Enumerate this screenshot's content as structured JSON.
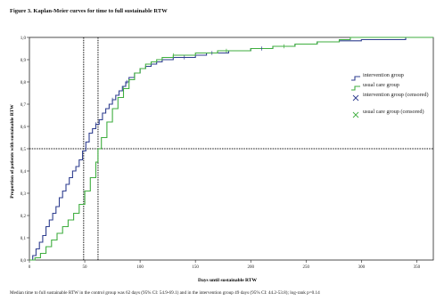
{
  "figure": {
    "title": "Figure 3. Kaplan-Meier curves for time to full sustainable RTW",
    "caption": "Median time to full sustainable RTW in the control group was 62 days (95% CI: 54.9-69.1) and in the intervention group 49 days (95% CI: 44.2-53.8); log-rank p=0.14"
  },
  "legend": [
    {
      "label": "intervention group",
      "kind": "line",
      "series": "intervention"
    },
    {
      "label": "usual care group",
      "kind": "line",
      "series": "usual"
    },
    {
      "label": "intervention group (censored)",
      "kind": "cross",
      "series": "intervention"
    },
    {
      "label": "usual care group (censored)",
      "kind": "cross",
      "series": "usual"
    }
  ],
  "chart_data": {
    "type": "line",
    "title": "",
    "xlabel": "Days until sustainable RTW",
    "ylabel": "Proportion of patients with sustainable RTW",
    "xlim": [
      0,
      365
    ],
    "ylim": [
      0,
      1
    ],
    "x_ticks": [
      0,
      50,
      100,
      150,
      200,
      250,
      300,
      350
    ],
    "y_ticks": [
      0.0,
      0.1,
      0.2,
      0.3,
      0.4,
      0.5,
      0.6,
      0.7,
      0.8,
      0.9,
      1.0
    ],
    "y_tick_labels": [
      "0,0",
      "0,1",
      "0,2",
      "0,3",
      "0,4",
      "0,5",
      "0,6",
      "0,7",
      "0,8",
      "0,9",
      "1,0"
    ],
    "grid": false,
    "legend_position": "right",
    "reference_lines": {
      "y": [
        0.5
      ],
      "x": [
        49,
        62
      ]
    },
    "series": [
      {
        "name": "intervention group",
        "color": "#2f3e8f",
        "x": [
          0,
          3,
          6,
          9,
          12,
          15,
          18,
          21,
          24,
          27,
          30,
          33,
          36,
          39,
          42,
          45,
          48,
          51,
          54,
          57,
          60,
          63,
          66,
          69,
          72,
          75,
          78,
          81,
          84,
          87,
          90,
          95,
          100,
          105,
          110,
          115,
          120,
          130,
          140,
          150,
          160,
          170,
          180,
          200,
          220,
          240,
          260,
          280,
          300,
          320,
          340,
          365
        ],
        "values": [
          0.0,
          0.02,
          0.05,
          0.08,
          0.11,
          0.15,
          0.18,
          0.21,
          0.24,
          0.28,
          0.31,
          0.34,
          0.37,
          0.4,
          0.42,
          0.45,
          0.49,
          0.53,
          0.57,
          0.59,
          0.61,
          0.63,
          0.66,
          0.68,
          0.7,
          0.72,
          0.74,
          0.76,
          0.78,
          0.8,
          0.82,
          0.84,
          0.86,
          0.87,
          0.88,
          0.89,
          0.9,
          0.91,
          0.91,
          0.92,
          0.93,
          0.93,
          0.94,
          0.95,
          0.96,
          0.97,
          0.98,
          0.985,
          0.99,
          0.99,
          1.0,
          1.0
        ]
      },
      {
        "name": "usual care group",
        "color": "#3fae3f",
        "x": [
          0,
          5,
          10,
          15,
          20,
          25,
          30,
          35,
          40,
          45,
          50,
          55,
          60,
          62,
          65,
          70,
          75,
          80,
          85,
          90,
          95,
          100,
          105,
          110,
          115,
          120,
          130,
          140,
          150,
          160,
          170,
          180,
          200,
          220,
          240,
          260,
          280,
          290,
          300,
          365
        ],
        "values": [
          0.0,
          0.01,
          0.03,
          0.06,
          0.09,
          0.12,
          0.15,
          0.18,
          0.21,
          0.25,
          0.31,
          0.37,
          0.44,
          0.5,
          0.55,
          0.62,
          0.68,
          0.73,
          0.77,
          0.81,
          0.84,
          0.86,
          0.88,
          0.89,
          0.9,
          0.91,
          0.92,
          0.92,
          0.93,
          0.93,
          0.94,
          0.94,
          0.95,
          0.96,
          0.97,
          0.98,
          0.99,
          1.0,
          1.0,
          1.0
        ]
      }
    ],
    "censored": [
      {
        "series": "intervention group",
        "x": [
          60,
          75,
          88,
          140,
          165,
          210
        ]
      },
      {
        "series": "usual care group",
        "x": [
          85,
          130,
          178,
          230
        ]
      }
    ]
  }
}
